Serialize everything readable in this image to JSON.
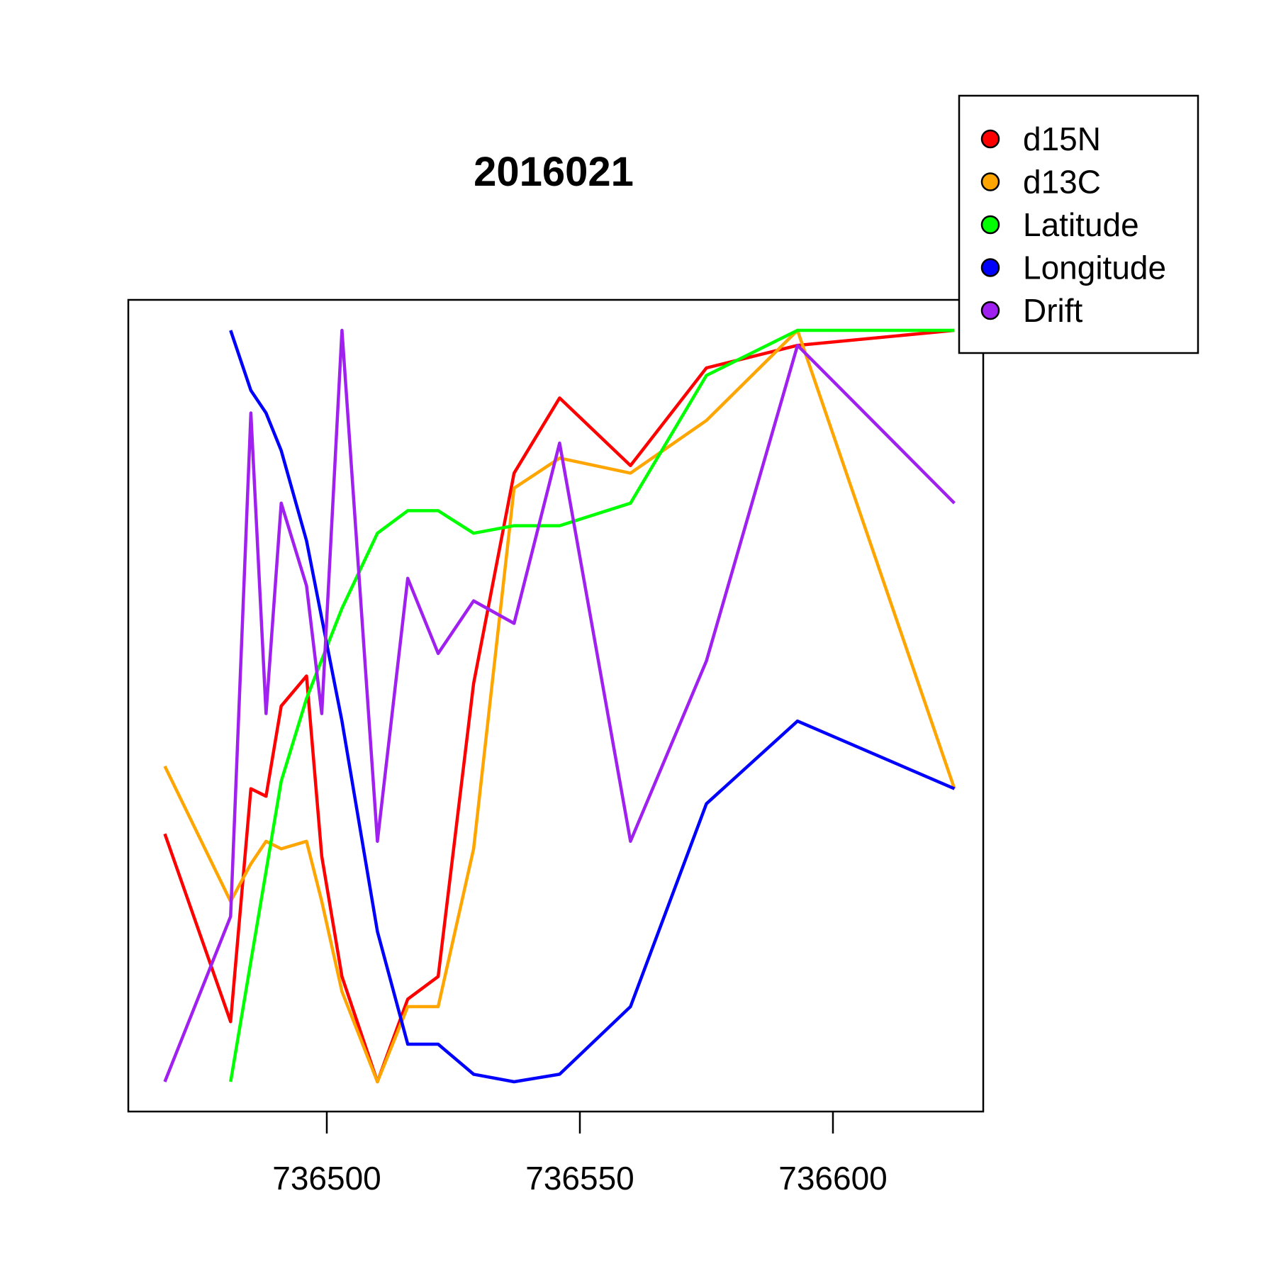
{
  "chart_data": {
    "type": "line",
    "title": "2016021",
    "xlabel": "",
    "ylabel": "",
    "xlim": [
      736465,
      736635
    ],
    "ylim": [
      0,
      1
    ],
    "x_ticks": [
      "736500",
      "736550",
      "736600"
    ],
    "y_axis_shown": false,
    "grid": false,
    "legend_position": "top-right",
    "series": [
      {
        "name": "d15N",
        "color": "#ff0000",
        "points": [
          [
            736468,
            0.33
          ],
          [
            736481,
            0.08
          ],
          [
            736485,
            0.39
          ],
          [
            736488,
            0.38
          ],
          [
            736491,
            0.5
          ],
          [
            736496,
            0.54
          ],
          [
            736499,
            0.3
          ],
          [
            736503,
            0.14
          ],
          [
            736510,
            0.0
          ],
          [
            736516,
            0.11
          ],
          [
            736522,
            0.14
          ],
          [
            736529,
            0.53
          ],
          [
            736537,
            0.81
          ],
          [
            736546,
            0.91
          ],
          [
            736560,
            0.82
          ],
          [
            736575,
            0.95
          ],
          [
            736593,
            0.98
          ],
          [
            736624,
            1.0
          ]
        ]
      },
      {
        "name": "d13C",
        "color": "#ffa500",
        "points": [
          [
            736468,
            0.42
          ],
          [
            736481,
            0.24
          ],
          [
            736485,
            0.29
          ],
          [
            736488,
            0.32
          ],
          [
            736491,
            0.31
          ],
          [
            736496,
            0.32
          ],
          [
            736499,
            0.24
          ],
          [
            736503,
            0.12
          ],
          [
            736510,
            0.0
          ],
          [
            736516,
            0.1
          ],
          [
            736522,
            0.1
          ],
          [
            736529,
            0.31
          ],
          [
            736537,
            0.79
          ],
          [
            736546,
            0.83
          ],
          [
            736560,
            0.81
          ],
          [
            736575,
            0.88
          ],
          [
            736593,
            1.0
          ],
          [
            736624,
            0.39
          ]
        ]
      },
      {
        "name": "Latitude",
        "color": "#00ff00",
        "points": [
          [
            736481,
            0.0
          ],
          [
            736491,
            0.4
          ],
          [
            736496,
            0.51
          ],
          [
            736503,
            0.63
          ],
          [
            736510,
            0.73
          ],
          [
            736516,
            0.76
          ],
          [
            736522,
            0.76
          ],
          [
            736529,
            0.73
          ],
          [
            736537,
            0.74
          ],
          [
            736546,
            0.74
          ],
          [
            736560,
            0.77
          ],
          [
            736575,
            0.94
          ],
          [
            736593,
            1.0
          ],
          [
            736624,
            1.0
          ]
        ]
      },
      {
        "name": "Longitude",
        "color": "#0000ff",
        "points": [
          [
            736481,
            1.0
          ],
          [
            736485,
            0.92
          ],
          [
            736488,
            0.89
          ],
          [
            736491,
            0.84
          ],
          [
            736496,
            0.72
          ],
          [
            736503,
            0.48
          ],
          [
            736510,
            0.2
          ],
          [
            736516,
            0.05
          ],
          [
            736522,
            0.05
          ],
          [
            736529,
            0.01
          ],
          [
            736537,
            0.0
          ],
          [
            736546,
            0.01
          ],
          [
            736560,
            0.1
          ],
          [
            736575,
            0.37
          ],
          [
            736593,
            0.48
          ],
          [
            736624,
            0.39
          ]
        ]
      },
      {
        "name": "Drift",
        "color": "#a020f0",
        "points": [
          [
            736468,
            0.0
          ],
          [
            736481,
            0.22
          ],
          [
            736485,
            0.89
          ],
          [
            736488,
            0.49
          ],
          [
            736491,
            0.77
          ],
          [
            736496,
            0.66
          ],
          [
            736499,
            0.49
          ],
          [
            736503,
            1.0
          ],
          [
            736510,
            0.32
          ],
          [
            736516,
            0.67
          ],
          [
            736522,
            0.57
          ],
          [
            736529,
            0.64
          ],
          [
            736537,
            0.61
          ],
          [
            736546,
            0.85
          ],
          [
            736560,
            0.32
          ],
          [
            736575,
            0.56
          ],
          [
            736593,
            0.98
          ],
          [
            736624,
            0.77
          ]
        ]
      }
    ]
  }
}
